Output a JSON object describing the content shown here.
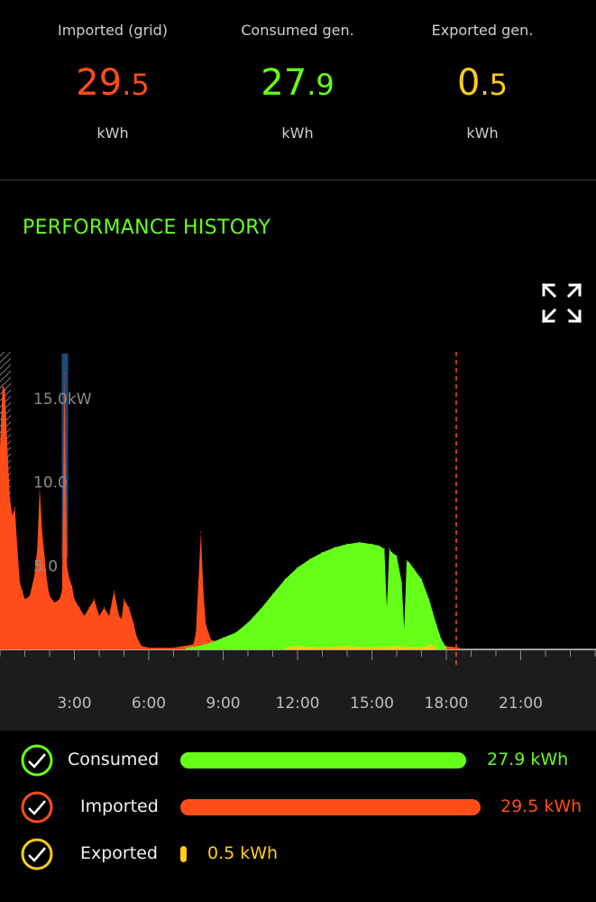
{
  "summary": {
    "imported": {
      "label": "Imported (grid)",
      "int": "29",
      "dec": ".5",
      "unit": "kWh",
      "color": "#ff4d1a"
    },
    "consumed": {
      "label": "Consumed gen.",
      "int": "27",
      "dec": ".9",
      "unit": "kWh",
      "color": "#66ff1a"
    },
    "exported": {
      "label": "Exported gen.",
      "int": "0",
      "dec": ".5",
      "unit": "kWh",
      "color": "#ffcc1a"
    }
  },
  "section_title": "PERFORMANCE HISTORY",
  "expand_icon": "expand-arrows-icon",
  "colors": {
    "imported": "#ff4d1a",
    "consumed": "#66ff1a",
    "exported": "#ffcc1a",
    "blue_marker": "#1f4a7a",
    "axis_band": "#1c1c1c"
  },
  "chart_data": {
    "type": "area",
    "x_unit": "hour",
    "x_tick_labels": [
      "3:00",
      "6:00",
      "9:00",
      "12:00",
      "15:00",
      "18:00",
      "21:00"
    ],
    "x_tick_values": [
      3,
      6,
      9,
      12,
      15,
      18,
      21
    ],
    "xlim": [
      0,
      24
    ],
    "y_tick_labels": [
      "15.0kW",
      "10.0",
      "5.0"
    ],
    "y_tick_values": [
      15,
      10,
      5
    ],
    "ylim": [
      0,
      17.8
    ],
    "current_time_marker": 18.4,
    "grid": false,
    "series": [
      {
        "name": "Imported",
        "color": "#ff4d1a",
        "x": [
          0,
          0.1,
          0.2,
          0.3,
          0.4,
          0.5,
          0.6,
          0.7,
          0.8,
          0.9,
          1.0,
          1.2,
          1.4,
          1.5,
          1.6,
          1.7,
          1.8,
          1.9,
          2.0,
          2.2,
          2.4,
          2.5,
          2.6,
          2.7,
          2.8,
          2.9,
          3.0,
          3.2,
          3.4,
          3.6,
          3.8,
          4.0,
          4.2,
          4.4,
          4.6,
          4.8,
          4.9,
          5.0,
          5.2,
          5.4,
          5.5,
          5.7,
          6.0,
          7.0,
          7.8,
          7.9,
          8.0,
          8.1,
          8.2,
          8.3,
          8.5,
          8.8,
          9.0,
          9.5,
          10.0,
          10.5,
          11.0,
          11.5,
          12.0,
          13.0,
          14.0,
          15.0,
          16.0,
          16.5,
          17.0,
          17.5,
          18.0,
          18.5
        ],
        "values": [
          12,
          15.8,
          15.5,
          12,
          9,
          8,
          8.5,
          6,
          4,
          3.5,
          3.0,
          3.2,
          4.5,
          6,
          9.7,
          7,
          5.5,
          4,
          3.2,
          2.8,
          3.0,
          3.5,
          16.5,
          5,
          4.2,
          3.8,
          3.0,
          2.5,
          2.0,
          2.5,
          3.0,
          2.0,
          2.5,
          2.0,
          3.5,
          2.0,
          1.8,
          3.0,
          2.5,
          1.5,
          0.8,
          0.2,
          0.1,
          0.1,
          0.3,
          1.0,
          4.0,
          7.0,
          3.5,
          1.5,
          0.6,
          0.4,
          0.3,
          0.2,
          0.2,
          0.2,
          0.2,
          0.1,
          0.1,
          0.1,
          0.1,
          0.1,
          0.1,
          0.1,
          0.2,
          0.3,
          0.2,
          0.1
        ]
      },
      {
        "name": "Consumed",
        "color": "#66ff1a",
        "x": [
          7.5,
          8.0,
          8.5,
          9.0,
          9.5,
          10.0,
          10.5,
          11.0,
          11.5,
          12.0,
          12.5,
          13.0,
          13.5,
          14.0,
          14.5,
          15.0,
          15.3,
          15.5,
          15.6,
          15.7,
          15.8,
          16.0,
          16.2,
          16.3,
          16.4,
          16.5,
          16.7,
          17.0,
          17.3,
          17.6,
          17.8,
          18.0
        ],
        "values": [
          0.1,
          0.2,
          0.4,
          0.7,
          1.0,
          1.6,
          2.4,
          3.3,
          4.2,
          4.9,
          5.4,
          5.8,
          6.1,
          6.3,
          6.4,
          6.3,
          6.2,
          6.0,
          2.5,
          6.0,
          5.8,
          5.6,
          4.0,
          1.2,
          5.3,
          5.2,
          4.8,
          4.2,
          3.0,
          1.5,
          0.6,
          0.1
        ]
      },
      {
        "name": "Exported",
        "color": "#ffcc1a",
        "x": [
          11.5,
          12.0,
          13.0,
          14.0,
          15.0,
          16.0,
          17.0,
          17.4,
          17.6
        ],
        "values": [
          0.1,
          0.2,
          0.1,
          0.2,
          0.1,
          0.2,
          0.1,
          0.3,
          0.1
        ]
      }
    ],
    "blue_marker_x": 2.6
  },
  "legend": [
    {
      "key": "consumed",
      "label": "Consumed",
      "value_text": "27.9 kWh",
      "value": 27.9,
      "color": "#66ff1a"
    },
    {
      "key": "imported",
      "label": "Imported",
      "value_text": "29.5 kWh",
      "value": 29.5,
      "color": "#ff4d1a"
    },
    {
      "key": "exported",
      "label": "Exported",
      "value_text": "0.5 kWh",
      "value": 0.5,
      "color": "#ffcc1a"
    }
  ]
}
